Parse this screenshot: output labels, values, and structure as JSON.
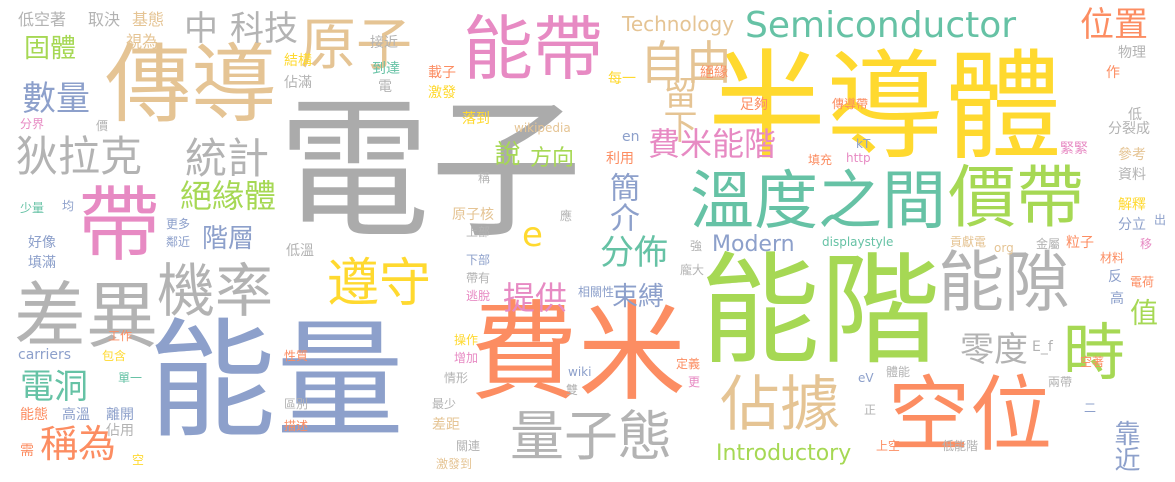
{
  "words": [
    {
      "text": "電子",
      "color": "#ababab"
    },
    {
      "text": "半導體",
      "color": "#ffd92f"
    },
    {
      "text": "能量",
      "color": "#8da0cb"
    },
    {
      "text": "費米",
      "color": "#fc8d62"
    },
    {
      "text": "能階",
      "color": "#a6d854"
    },
    {
      "text": "傳導",
      "color": "#e5c494"
    },
    {
      "text": "能帶",
      "color": "#e78ac3"
    },
    {
      "text": "帶",
      "color": "#e78ac3"
    },
    {
      "text": "空位",
      "color": "#fc8d62"
    },
    {
      "text": "溫度之間",
      "color": "#66c2a5"
    },
    {
      "text": "價帶",
      "color": "#a6d854"
    },
    {
      "text": "差異",
      "color": "#b3b3b3"
    },
    {
      "text": "機率",
      "color": "#b3b3b3"
    },
    {
      "text": "能隙",
      "color": "#b3b3b3"
    },
    {
      "text": "佔據",
      "color": "#e5c494"
    },
    {
      "text": "量子態",
      "color": "#b3b3b3"
    },
    {
      "text": "遵守",
      "color": "#ffd92f"
    },
    {
      "text": "原子",
      "color": "#e5c494"
    },
    {
      "text": "自由",
      "color": "#e5c494"
    },
    {
      "text": "Semiconductor",
      "color": "#66c2a5"
    },
    {
      "text": "時",
      "color": "#a6d854"
    },
    {
      "text": "狄拉克",
      "color": "#b3b3b3"
    },
    {
      "text": "統計",
      "color": "#b3b3b3"
    },
    {
      "text": "中",
      "color": "#b3b3b3"
    },
    {
      "text": "科技",
      "color": "#b3b3b3"
    },
    {
      "text": "位置",
      "color": "#fc8d62"
    },
    {
      "text": "固體",
      "color": "#a6d854"
    },
    {
      "text": "數量",
      "color": "#8da0cb"
    },
    {
      "text": "絕緣體",
      "color": "#a6d854"
    },
    {
      "text": "電洞",
      "color": "#66c2a5"
    },
    {
      "text": "稱為",
      "color": "#fc8d62"
    },
    {
      "text": "留下",
      "color": "#e5c494"
    },
    {
      "text": "費米能階",
      "color": "#e78ac3"
    },
    {
      "text": "分佈",
      "color": "#66c2a5"
    },
    {
      "text": "提供",
      "color": "#e78ac3"
    },
    {
      "text": "零度",
      "color": "#b3b3b3"
    },
    {
      "text": "值",
      "color": "#a6d854"
    },
    {
      "text": "靠近",
      "color": "#8da0cb"
    },
    {
      "text": "說",
      "color": "#a6d854"
    },
    {
      "text": "方向",
      "color": "#a6d854"
    },
    {
      "text": "簡介",
      "color": "#8da0cb"
    },
    {
      "text": "階層",
      "color": "#8da0cb"
    },
    {
      "text": "束縛",
      "color": "#8da0cb"
    },
    {
      "text": "Modern",
      "color": "#8da0cb"
    },
    {
      "text": "Introductory",
      "color": "#a6d854"
    },
    {
      "text": "Technology",
      "color": "#e5c494"
    },
    {
      "text": "e",
      "color": "#ffd92f"
    },
    {
      "text": "低空著",
      "color": "#b3b3b3"
    },
    {
      "text": "取決",
      "color": "#b3b3b3"
    },
    {
      "text": "基態",
      "color": "#e5c494"
    },
    {
      "text": "視為",
      "color": "#e5c494"
    },
    {
      "text": "結構",
      "color": "#ffd92f"
    },
    {
      "text": "佔滿",
      "color": "#b3b3b3"
    },
    {
      "text": "接近",
      "color": "#b3b3b3"
    },
    {
      "text": "到達",
      "color": "#66c2a5"
    },
    {
      "text": "電",
      "color": "#b3b3b3"
    },
    {
      "text": "載子",
      "color": "#fc8d62"
    },
    {
      "text": "激發",
      "color": "#ffd92f"
    },
    {
      "text": "每一",
      "color": "#ffd92f"
    },
    {
      "text": "絕緣",
      "color": "#fc8d62"
    },
    {
      "text": "足夠",
      "color": "#fc8d62"
    },
    {
      "text": "傳導帶",
      "color": "#fc8d62"
    },
    {
      "text": "物理",
      "color": "#b3b3b3"
    },
    {
      "text": "作",
      "color": "#fc8d62"
    },
    {
      "text": "低",
      "color": "#b3b3b3"
    },
    {
      "text": "分裂成",
      "color": "#b3b3b3"
    },
    {
      "text": "分界",
      "color": "#e78ac3"
    },
    {
      "text": "價",
      "color": "#b3b3b3"
    },
    {
      "text": "落到",
      "color": "#ffd92f"
    },
    {
      "text": "wikipedia",
      "color": "#e5c494"
    },
    {
      "text": "en",
      "color": "#8da0cb"
    },
    {
      "text": "利用",
      "color": "#fc8d62"
    },
    {
      "text": "kT",
      "color": "#8da0cb"
    },
    {
      "text": "http",
      "color": "#e78ac3"
    },
    {
      "text": "填充",
      "color": "#fc8d62"
    },
    {
      "text": "緊緊",
      "color": "#e78ac3"
    },
    {
      "text": "參考",
      "color": "#e5c494"
    },
    {
      "text": "資料",
      "color": "#b3b3b3"
    },
    {
      "text": "少量",
      "color": "#66c2a5"
    },
    {
      "text": "均",
      "color": "#8da0cb"
    },
    {
      "text": "稱",
      "color": "#b3b3b3"
    },
    {
      "text": "更多",
      "color": "#8da0cb"
    },
    {
      "text": "鄰近",
      "color": "#8da0cb"
    },
    {
      "text": "好像",
      "color": "#8da0cb"
    },
    {
      "text": "填滿",
      "color": "#8da0cb"
    },
    {
      "text": "原子核",
      "color": "#e5c494"
    },
    {
      "text": "應",
      "color": "#b3b3b3"
    },
    {
      "text": "上部",
      "color": "#b3b3b3"
    },
    {
      "text": "下部",
      "color": "#8da0cb"
    },
    {
      "text": "帶有",
      "color": "#b3b3b3"
    },
    {
      "text": "逃脫",
      "color": "#e78ac3"
    },
    {
      "text": "強",
      "color": "#b3b3b3"
    },
    {
      "text": "龐大",
      "color": "#b3b3b3"
    },
    {
      "text": "相關性",
      "color": "#8da0cb"
    },
    {
      "text": "displaystyle",
      "color": "#66c2a5"
    },
    {
      "text": "低溫",
      "color": "#b3b3b3"
    },
    {
      "text": "解釋",
      "color": "#ffd92f"
    },
    {
      "text": "出",
      "color": "#8da0cb"
    },
    {
      "text": "分立",
      "color": "#8da0cb"
    },
    {
      "text": "移",
      "color": "#e78ac3"
    },
    {
      "text": "貢獻電",
      "color": "#e5c494"
    },
    {
      "text": "org",
      "color": "#e5c494"
    },
    {
      "text": "金屬",
      "color": "#b3b3b3"
    },
    {
      "text": "粒子",
      "color": "#fc8d62"
    },
    {
      "text": "材料",
      "color": "#fc8d62"
    },
    {
      "text": "反",
      "color": "#8da0cb"
    },
    {
      "text": "電荷",
      "color": "#fc8d62"
    },
    {
      "text": "高",
      "color": "#8da0cb"
    },
    {
      "text": "工作",
      "color": "#fc8d62"
    },
    {
      "text": "carriers",
      "color": "#8da0cb"
    },
    {
      "text": "包含",
      "color": "#ffd92f"
    },
    {
      "text": "性質",
      "color": "#fc8d62"
    },
    {
      "text": "操作",
      "color": "#ffd92f"
    },
    {
      "text": "增加",
      "color": "#e78ac3"
    },
    {
      "text": "情形",
      "color": "#b3b3b3"
    },
    {
      "text": "雙",
      "color": "#b3b3b3"
    },
    {
      "text": "wiki",
      "color": "#8da0cb"
    },
    {
      "text": "定義",
      "color": "#fc8d62"
    },
    {
      "text": "更",
      "color": "#e78ac3"
    },
    {
      "text": "eV",
      "color": "#8da0cb"
    },
    {
      "text": "體能",
      "color": "#b3b3b3"
    },
    {
      "text": "E_f",
      "color": "#b3b3b3"
    },
    {
      "text": "空著",
      "color": "#fc8d62"
    },
    {
      "text": "兩帶",
      "color": "#b3b3b3"
    },
    {
      "text": "單一",
      "color": "#66c2a5"
    },
    {
      "text": "能態",
      "color": "#fc8d62"
    },
    {
      "text": "高溫",
      "color": "#8da0cb"
    },
    {
      "text": "離開",
      "color": "#8da0cb"
    },
    {
      "text": "佔用",
      "color": "#b3b3b3"
    },
    {
      "text": "區別",
      "color": "#b3b3b3"
    },
    {
      "text": "最少",
      "color": "#b3b3b3"
    },
    {
      "text": "差距",
      "color": "#e5c494"
    },
    {
      "text": "描述",
      "color": "#fc8d62"
    },
    {
      "text": "關連",
      "color": "#b3b3b3"
    },
    {
      "text": "激發到",
      "color": "#e5c494"
    },
    {
      "text": "正",
      "color": "#b3b3b3"
    },
    {
      "text": "二",
      "color": "#8da0cb"
    },
    {
      "text": "上空",
      "color": "#fc8d62"
    },
    {
      "text": "低能階",
      "color": "#b3b3b3"
    },
    {
      "text": "需",
      "color": "#fc8d62"
    },
    {
      "text": "空",
      "color": "#ffd92f"
    }
  ]
}
